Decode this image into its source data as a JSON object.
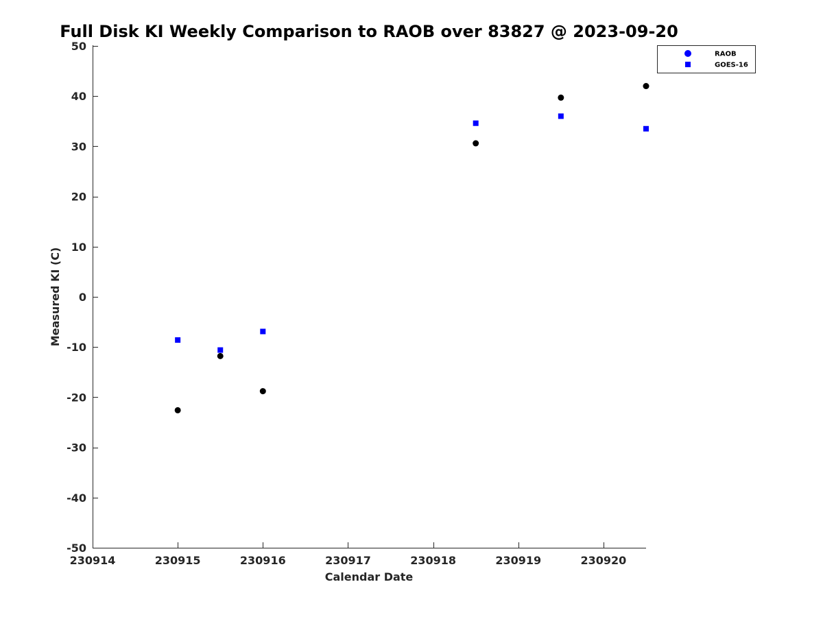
{
  "chart_data": {
    "type": "scatter",
    "title": "Full Disk KI Weekly Comparison to RAOB over 83827 @ 2023-09-20",
    "xlabel": "Calendar Date",
    "ylabel": "Measured KI (C)",
    "x_tick_labels": [
      "230914",
      "230915",
      "230916",
      "230917",
      "230918",
      "230919",
      "230920"
    ],
    "x_tick_values": [
      0,
      1,
      2,
      3,
      4,
      5,
      6
    ],
    "xlim": [
      0,
      6.5
    ],
    "ylim": [
      -50,
      50
    ],
    "y_ticks": [
      50,
      40,
      30,
      20,
      10,
      0,
      -10,
      -20,
      -30,
      -40,
      -50
    ],
    "grid": false,
    "legend_position": "top-right, outside plot area",
    "series": [
      {
        "name": "RAOB",
        "marker": "circle",
        "color": "#000000",
        "legend_color": "#0000ff",
        "x": [
          1.0,
          1.5,
          2.0,
          4.5,
          5.5,
          6.5
        ],
        "y": [
          -22.6,
          -11.8,
          -18.8,
          30.6,
          39.7,
          42.0
        ]
      },
      {
        "name": "GOES-16",
        "marker": "square",
        "color": "#0000ff",
        "x": [
          1.0,
          1.5,
          2.0,
          4.5,
          5.5,
          6.5
        ],
        "y": [
          -8.6,
          -10.6,
          -6.9,
          34.6,
          36.0,
          33.5
        ]
      }
    ]
  }
}
